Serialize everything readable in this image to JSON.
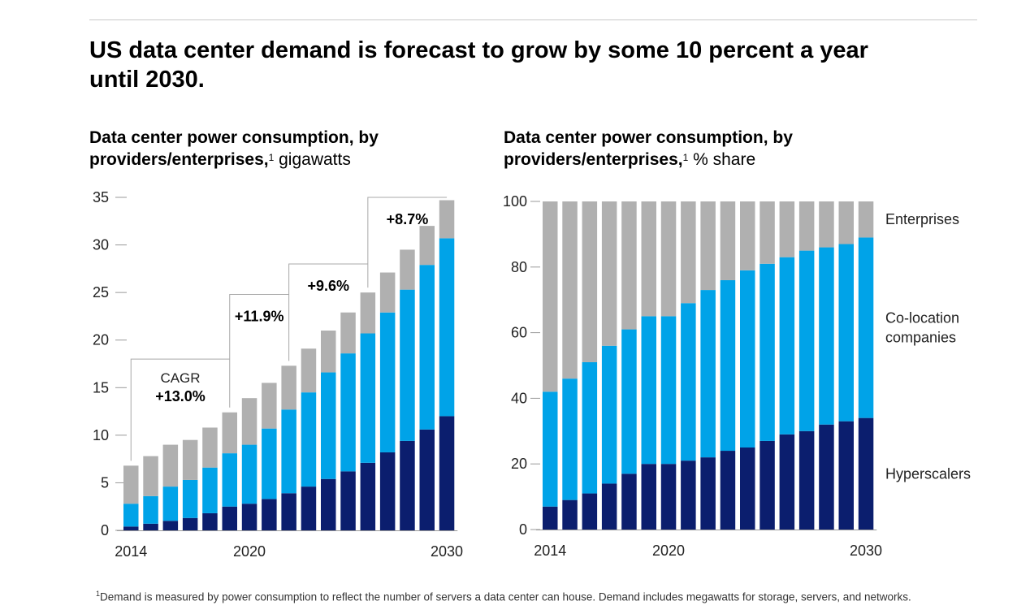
{
  "headline": "US data center demand is forecast to grow by some 10 percent a year until 2030.",
  "footnote": {
    "marker": "1",
    "text": "Demand is measured by power consumption to reflect the number of servers a data center can house. Demand includes megawatts for storage, servers, and networks."
  },
  "colors": {
    "hyperscalers": "#0b1e6e",
    "colocation": "#00a3e8",
    "enterprises": "#b0b0b0",
    "axis": "#999999",
    "bracket": "#a8a8a8"
  },
  "chart_data": [
    {
      "type": "bar",
      "stacked": true,
      "title": "Data center power consumption, by providers/enterprises,",
      "title_bold": "Data center power consumption, by providers/enterprises,",
      "title_sup": "1",
      "title_unit": "gigawatts",
      "categories": [
        "2014",
        "2015",
        "2016",
        "2017",
        "2018",
        "2019",
        "2020",
        "2021",
        "2022",
        "2023",
        "2024",
        "2025",
        "2026",
        "2027",
        "2028",
        "2029",
        "2030"
      ],
      "x_tick_labels": [
        "2014",
        "2020",
        "2030"
      ],
      "y_ticks": [
        "0",
        "5",
        "10",
        "15",
        "20",
        "25",
        "30",
        "35"
      ],
      "ylim": [
        0,
        35
      ],
      "grid": false,
      "series": [
        {
          "name": "Hyperscalers",
          "values": [
            0.4,
            0.7,
            1.0,
            1.3,
            1.8,
            2.5,
            2.8,
            3.3,
            3.9,
            4.6,
            5.4,
            6.2,
            7.1,
            8.2,
            9.4,
            10.6,
            12.0
          ]
        },
        {
          "name": "Co-location companies",
          "values": [
            2.4,
            2.9,
            3.6,
            4.0,
            4.8,
            5.6,
            6.2,
            7.4,
            8.8,
            9.9,
            11.2,
            12.4,
            13.6,
            14.7,
            15.9,
            17.3,
            18.7
          ]
        },
        {
          "name": "Enterprises",
          "values": [
            4.0,
            4.2,
            4.4,
            4.2,
            4.2,
            4.3,
            4.9,
            4.8,
            4.6,
            4.6,
            4.4,
            4.3,
            4.3,
            4.2,
            4.2,
            4.1,
            4.0
          ]
        }
      ],
      "annotations": [
        {
          "label": "CAGR",
          "value": "+13.0%",
          "from": "2014",
          "to": "2019",
          "level": 18.0
        },
        {
          "label": "",
          "value": "+11.9%",
          "from": "2019",
          "to": "2022",
          "level": 24.8
        },
        {
          "label": "",
          "value": "+9.6%",
          "from": "2022",
          "to": "2026",
          "level": 28.0
        },
        {
          "label": "",
          "value": "+8.7%",
          "from": "2026",
          "to": "2030",
          "level": 35.0
        }
      ]
    },
    {
      "type": "bar",
      "stacked": true,
      "title": "Data center power consumption, by providers/enterprises,",
      "title_bold": "Data center power consumption, by providers/enterprises,",
      "title_sup": "1",
      "title_unit": "% share",
      "categories": [
        "2014",
        "2015",
        "2016",
        "2017",
        "2018",
        "2019",
        "2020",
        "2021",
        "2022",
        "2023",
        "2024",
        "2025",
        "2026",
        "2027",
        "2028",
        "2029",
        "2030"
      ],
      "x_tick_labels": [
        "2014",
        "2020",
        "2030"
      ],
      "y_ticks": [
        "0",
        "20",
        "40",
        "60",
        "80",
        "100"
      ],
      "ylim": [
        0,
        100
      ],
      "grid": false,
      "series": [
        {
          "name": "Hyperscalers",
          "values": [
            7,
            9,
            11,
            14,
            17,
            20,
            20,
            21,
            22,
            24,
            25,
            27,
            29,
            30,
            32,
            33,
            34
          ]
        },
        {
          "name": "Co-location companies",
          "values": [
            35,
            37,
            40,
            42,
            44,
            45,
            45,
            48,
            51,
            52,
            54,
            54,
            54,
            55,
            54,
            54,
            55
          ]
        },
        {
          "name": "Enterprises",
          "values": [
            58,
            54,
            49,
            44,
            39,
            35,
            35,
            31,
            27,
            24,
            21,
            19,
            17,
            15,
            14,
            13,
            11
          ]
        }
      ],
      "series_labels": [
        {
          "key": "enterprises",
          "lines": [
            "Enterprises"
          ]
        },
        {
          "key": "colocation",
          "lines": [
            "Co-location",
            "companies"
          ]
        },
        {
          "key": "hyperscalers",
          "lines": [
            "Hyperscalers"
          ]
        }
      ]
    }
  ]
}
